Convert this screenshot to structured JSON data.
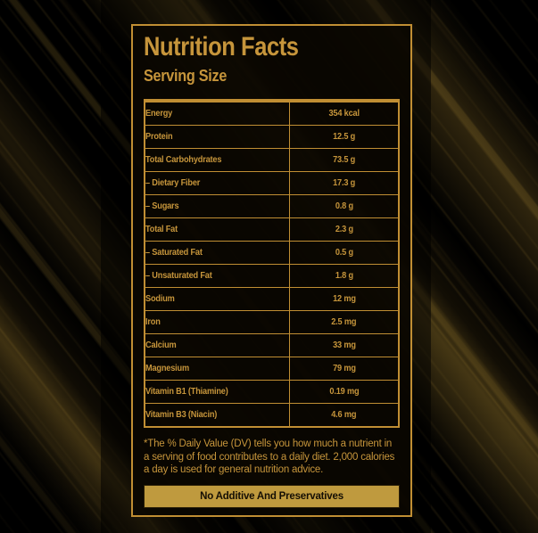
{
  "label": {
    "title": "Nutrition Facts",
    "serving_size": "Serving Size",
    "rows": [
      {
        "name": "Energy",
        "value": "354 kcal"
      },
      {
        "name": "Protein",
        "value": "12.5 g"
      },
      {
        "name": "Total Carbohydrates",
        "value": "73.5 g"
      },
      {
        "name": "– Dietary Fiber",
        "value": "17.3 g"
      },
      {
        "name": "– Sugars",
        "value": "0.8 g"
      },
      {
        "name": "Total Fat",
        "value": "2.3 g"
      },
      {
        "name": "– Saturated Fat",
        "value": "0.5 g"
      },
      {
        "name": "– Unsaturated Fat",
        "value": "1.8 g"
      },
      {
        "name": "Sodium",
        "value": "12 mg"
      },
      {
        "name": "Iron",
        "value": "2.5 mg"
      },
      {
        "name": "Calcium",
        "value": "33 mg"
      },
      {
        "name": "Magnesium",
        "value": "79 mg"
      },
      {
        "name": "Vitamin B1 (Thiamine)",
        "value": "0.19 mg"
      },
      {
        "name": "Vitamin B3 (Niacin)",
        "value": "4.6 mg"
      }
    ],
    "footnote": "*The % Daily Value (DV) tells you how much a nutrient in a serving of food contributes to a daily diet. 2,000 calories a day is used for general nutrition advice.",
    "banner": "No Additive And Preservatives"
  },
  "colors": {
    "gold": "#c6953b",
    "gold_border": "#c08e33",
    "banner_fill": "#bf9a3e",
    "banner_text": "#140e04",
    "background": "#000000"
  }
}
